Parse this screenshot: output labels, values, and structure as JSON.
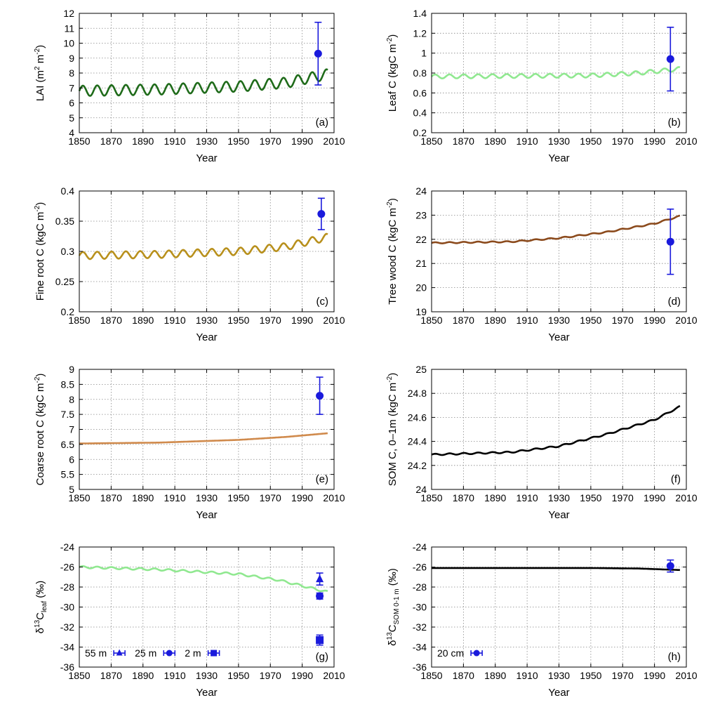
{
  "x_tick_labels": [
    "1850",
    "1870",
    "1890",
    "1910",
    "1930",
    "1950",
    "1970",
    "1990",
    "2010"
  ],
  "chart_data": [
    {
      "id": "a",
      "type": "line",
      "panel_label": "(a)",
      "xlabel": "Year",
      "ylabel": "LAI (m2 m-2)",
      "ylabel_parts": {
        "base": "LAI (m",
        "sup1": "2",
        "mid": " m",
        "sup2": "-2",
        "end": ")"
      },
      "xlim": [
        1850,
        2010
      ],
      "ylim": [
        4,
        12
      ],
      "y_ticks": [
        "4",
        "5",
        "6",
        "7",
        "8",
        "9",
        "10",
        "11",
        "12"
      ],
      "grid": true,
      "color": "#1f6b1a",
      "series": [
        {
          "trend": [
            [
              1850,
              6.8
            ],
            [
              1900,
              6.9
            ],
            [
              1950,
              7.1
            ],
            [
              1980,
              7.35
            ],
            [
              2005,
              7.9
            ]
          ],
          "seasonal_amplitude": 0.35
        }
      ],
      "observations": [
        {
          "x": 2000,
          "y": 9.3,
          "err": 2.1,
          "marker": "circle"
        }
      ]
    },
    {
      "id": "b",
      "type": "line",
      "panel_label": "(b)",
      "xlabel": "Year",
      "ylabel": "Leaf C (kgC m-2)",
      "ylabel_parts": {
        "base": "Leaf C (kgC m",
        "sup1": "-2",
        "end": ")"
      },
      "xlim": [
        1850,
        2010
      ],
      "ylim": [
        0.2,
        1.4
      ],
      "y_ticks": [
        "0.2",
        "0.4",
        "0.6",
        "0.8",
        "1",
        "1.2",
        "1.4"
      ],
      "grid": true,
      "color": "#90e890",
      "series": [
        {
          "trend": [
            [
              1850,
              0.765
            ],
            [
              1950,
              0.775
            ],
            [
              1980,
              0.8
            ],
            [
              2005,
              0.84
            ]
          ],
          "seasonal_amplitude": 0.02
        }
      ],
      "observations": [
        {
          "x": 2000,
          "y": 0.94,
          "err": 0.32,
          "marker": "circle"
        }
      ]
    },
    {
      "id": "c",
      "type": "line",
      "panel_label": "(c)",
      "xlabel": "Year",
      "ylabel": "Fine root C (kgC m-2)",
      "ylabel_parts": {
        "base": "Fine root C (kgC m",
        "sup1": "-2",
        "end": ")"
      },
      "xlim": [
        1850,
        2010
      ],
      "ylim": [
        0.2,
        0.4
      ],
      "y_ticks": [
        "0.2",
        "0.25",
        "0.3",
        "0.35",
        "0.4"
      ],
      "grid": true,
      "color": "#b8901c",
      "series": [
        {
          "trend": [
            [
              1850,
              0.293
            ],
            [
              1900,
              0.295
            ],
            [
              1950,
              0.3
            ],
            [
              1980,
              0.308
            ],
            [
              2005,
              0.323
            ]
          ],
          "seasonal_amplitude": 0.006
        }
      ],
      "observations": [
        {
          "x": 2002,
          "y": 0.362,
          "err": 0.026,
          "marker": "circle"
        }
      ]
    },
    {
      "id": "d",
      "type": "line",
      "panel_label": "(d)",
      "xlabel": "Year",
      "ylabel": "Tree wood C (kgC m-2)",
      "ylabel_parts": {
        "base": "Tree wood C (kgC m",
        "sup1": "-2",
        "end": ")"
      },
      "xlim": [
        1850,
        2010
      ],
      "ylim": [
        19,
        24
      ],
      "y_ticks": [
        "19",
        "20",
        "21",
        "22",
        "23",
        "24"
      ],
      "grid": true,
      "color": "#8b4a1c",
      "series": [
        {
          "trend": [
            [
              1850,
              21.85
            ],
            [
              1900,
              21.9
            ],
            [
              1930,
              22.05
            ],
            [
              1960,
              22.3
            ],
            [
              1990,
              22.65
            ],
            [
              2008,
              23.0
            ]
          ],
          "seasonal_amplitude": 0.025
        }
      ],
      "observations": [
        {
          "x": 2000,
          "y": 21.9,
          "err": 1.35,
          "marker": "circle"
        }
      ]
    },
    {
      "id": "e",
      "type": "line",
      "panel_label": "(e)",
      "xlabel": "Year",
      "ylabel": "Coarse root C (kgC m-2)",
      "ylabel_parts": {
        "base": "Coarse root C (kgC m",
        "sup1": "-2",
        "end": ")"
      },
      "xlim": [
        1850,
        2010
      ],
      "ylim": [
        5,
        9
      ],
      "y_ticks": [
        "5",
        "5.5",
        "6",
        "6.5",
        "7",
        "7.5",
        "8",
        "8.5",
        "9"
      ],
      "grid": true,
      "color": "#d08a4c",
      "series": [
        {
          "trend": [
            [
              1850,
              6.53
            ],
            [
              1900,
              6.56
            ],
            [
              1950,
              6.65
            ],
            [
              1980,
              6.75
            ],
            [
              2008,
              6.88
            ]
          ],
          "seasonal_amplitude": 0.0
        }
      ],
      "observations": [
        {
          "x": 2001,
          "y": 8.12,
          "err": 0.62,
          "marker": "circle"
        }
      ]
    },
    {
      "id": "f",
      "type": "line",
      "panel_label": "(f)",
      "xlabel": "Year",
      "ylabel": "SOM C, 0-1m (kgC m-2)",
      "ylabel_parts": {
        "base": "SOM C, 0–1m (kgC m",
        "sup1": "-2",
        "end": ")"
      },
      "xlim": [
        1850,
        2010
      ],
      "ylim": [
        24,
        25
      ],
      "y_ticks": [
        "24",
        "24.2",
        "24.4",
        "24.6",
        "24.8",
        "25"
      ],
      "grid": true,
      "color": "#000000",
      "series": [
        {
          "trend": [
            [
              1850,
              24.29
            ],
            [
              1900,
              24.31
            ],
            [
              1930,
              24.36
            ],
            [
              1960,
              24.46
            ],
            [
              1990,
              24.58
            ],
            [
              2006,
              24.69
            ]
          ],
          "seasonal_amplitude": 0.006
        }
      ],
      "observations": []
    },
    {
      "id": "g",
      "type": "line",
      "panel_label": "(g)",
      "xlabel": "Year",
      "ylabel": "δ13Cleaf (‰)",
      "ylabel_parts": {
        "base": "δ",
        "sup1": "13",
        "mid": "C",
        "sub": "leaf",
        "end": " (‰)"
      },
      "xlim": [
        1850,
        2010
      ],
      "ylim": [
        -36,
        -24
      ],
      "y_ticks": [
        "-36",
        "-34",
        "-32",
        "-30",
        "-28",
        "-26",
        "-24"
      ],
      "grid": true,
      "color": "#90e890",
      "series": [
        {
          "trend": [
            [
              1850,
              -26.0
            ],
            [
              1900,
              -26.25
            ],
            [
              1950,
              -26.7
            ],
            [
              1975,
              -27.3
            ],
            [
              2006,
              -28.5
            ]
          ],
          "seasonal_amplitude": 0.1
        }
      ],
      "observations": [
        {
          "x": 2001,
          "y": -27.2,
          "err": 0.6,
          "marker": "triangle"
        },
        {
          "x": 2001,
          "y": -28.9,
          "err": 0.3,
          "marker": "circle"
        },
        {
          "x": 2001,
          "y": -33.3,
          "err": 0.5,
          "marker": "square"
        }
      ],
      "legend": [
        {
          "label": "55 m",
          "marker": "triangle"
        },
        {
          "label": "25 m",
          "marker": "circle"
        },
        {
          "label": "2 m",
          "marker": "square"
        }
      ]
    },
    {
      "id": "h",
      "type": "line",
      "panel_label": "(h)",
      "xlabel": "Year",
      "ylabel": "δ13CSOM 0-1 m (‰)",
      "ylabel_parts": {
        "base": "δ",
        "sup1": "13",
        "mid": "C",
        "sub": "SOM 0-1 m",
        "end": " (‰)"
      },
      "xlim": [
        1850,
        2010
      ],
      "ylim": [
        -36,
        -24
      ],
      "y_ticks": [
        "-36",
        "-34",
        "-32",
        "-30",
        "-28",
        "-26",
        "-24"
      ],
      "grid": true,
      "color": "#000000",
      "series": [
        {
          "trend": [
            [
              1850,
              -26.1
            ],
            [
              1950,
              -26.1
            ],
            [
              1980,
              -26.15
            ],
            [
              2006,
              -26.3
            ]
          ],
          "seasonal_amplitude": 0.0
        }
      ],
      "observations": [
        {
          "x": 2000,
          "y": -25.9,
          "err": 0.6,
          "marker": "circle"
        }
      ],
      "legend": [
        {
          "label": "20 cm",
          "marker": "circle"
        }
      ]
    }
  ]
}
